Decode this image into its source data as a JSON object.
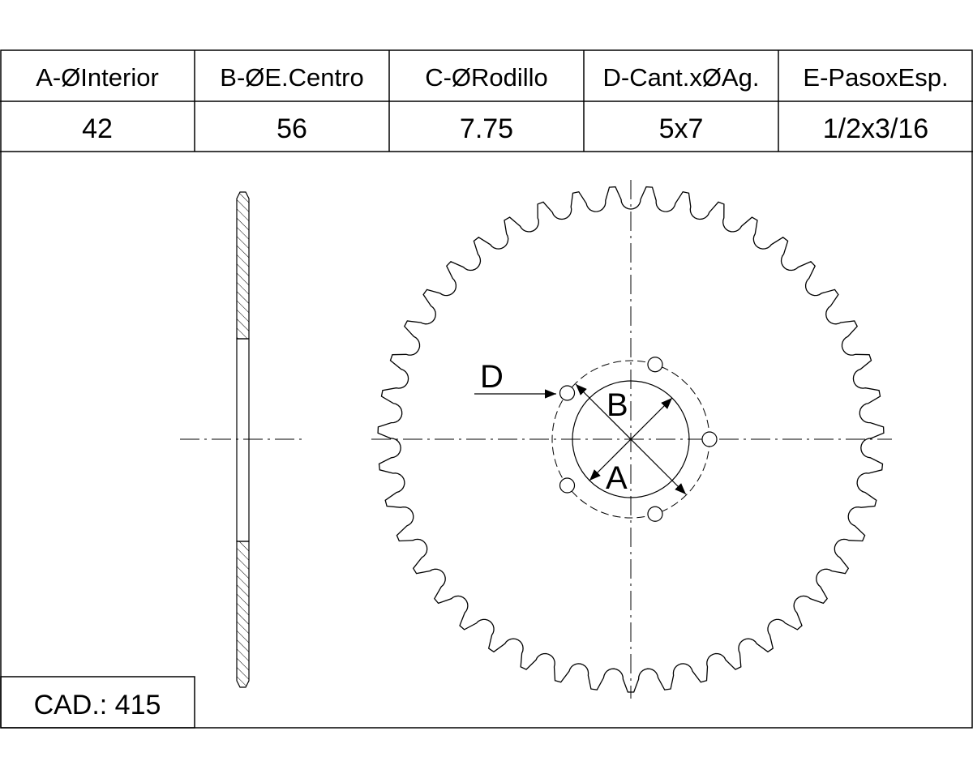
{
  "table": {
    "headers": [
      "A-ØInterior",
      "B-ØE.Centro",
      "C-ØRodillo",
      "D-Cant.xØAg.",
      "E-PasoxEsp."
    ],
    "rows": [
      [
        "42",
        "56",
        "7.75",
        "5x7",
        "1/2x3/16"
      ]
    ]
  },
  "labels": {
    "d": "D",
    "b": "B",
    "a": "A"
  },
  "code": "CAD.: 415"
}
